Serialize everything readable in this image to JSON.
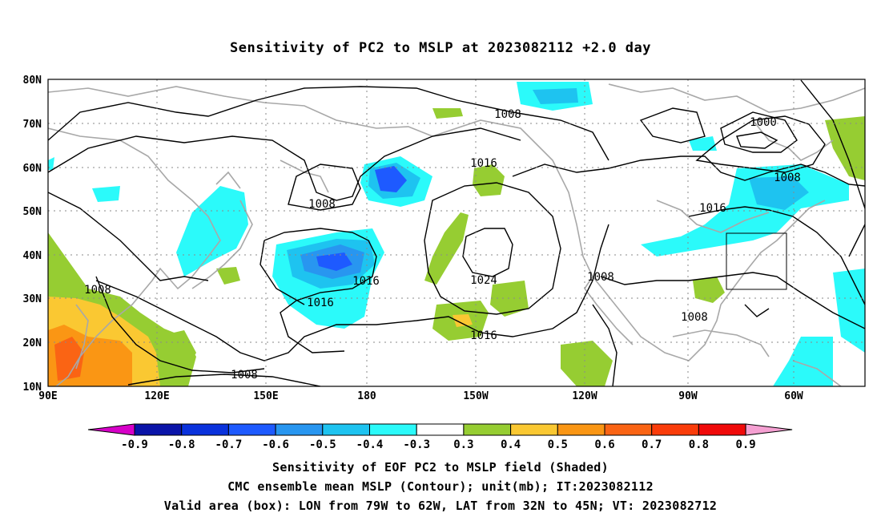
{
  "title": "Sensitivity of PC2 to MSLP at 2023082112 +2.0 day",
  "axes": {
    "lat_labels": [
      "80N",
      "70N",
      "60N",
      "50N",
      "40N",
      "30N",
      "20N",
      "10N"
    ],
    "lon_labels": [
      "90E",
      "120E",
      "150E",
      "180",
      "150W",
      "120W",
      "90W",
      "60W"
    ],
    "grid": "dotted"
  },
  "contour_labels": [
    "1008",
    "1000",
    "1008",
    "1016",
    "1008",
    "1016",
    "1016",
    "1024",
    "1008",
    "1008",
    "1016",
    "1016",
    "1008",
    "1008"
  ],
  "valid_box": {
    "lon_from": "79W",
    "lon_to": "62W",
    "lat_from": "32N",
    "lat_to": "45N"
  },
  "colorbar": {
    "labels": [
      "-0.9",
      "-0.8",
      "-0.7",
      "-0.6",
      "-0.5",
      "-0.4",
      "-0.3",
      "0.3",
      "0.4",
      "0.5",
      "0.6",
      "0.7",
      "0.8",
      "0.9"
    ],
    "colors": [
      "#d700c8",
      "#0a14a8",
      "#0a32dc",
      "#1e5aff",
      "#2896f0",
      "#1ec3f0",
      "#2bfafa",
      "#ffffff",
      "#96cd32",
      "#fac832",
      "#fa9614",
      "#fa6414",
      "#fa3c0a",
      "#f00a0a",
      "#f5a0d2"
    ]
  },
  "captions": [
    "Sensitivity of EOF PC2 to MSLP field (Shaded)",
    "CMC ensemble mean MSLP (Contour); unit(mb); IT:2023082112",
    "Valid area (box): LON from 79W to 62W, LAT from 32N to 45N; VT: 2023082712"
  ]
}
